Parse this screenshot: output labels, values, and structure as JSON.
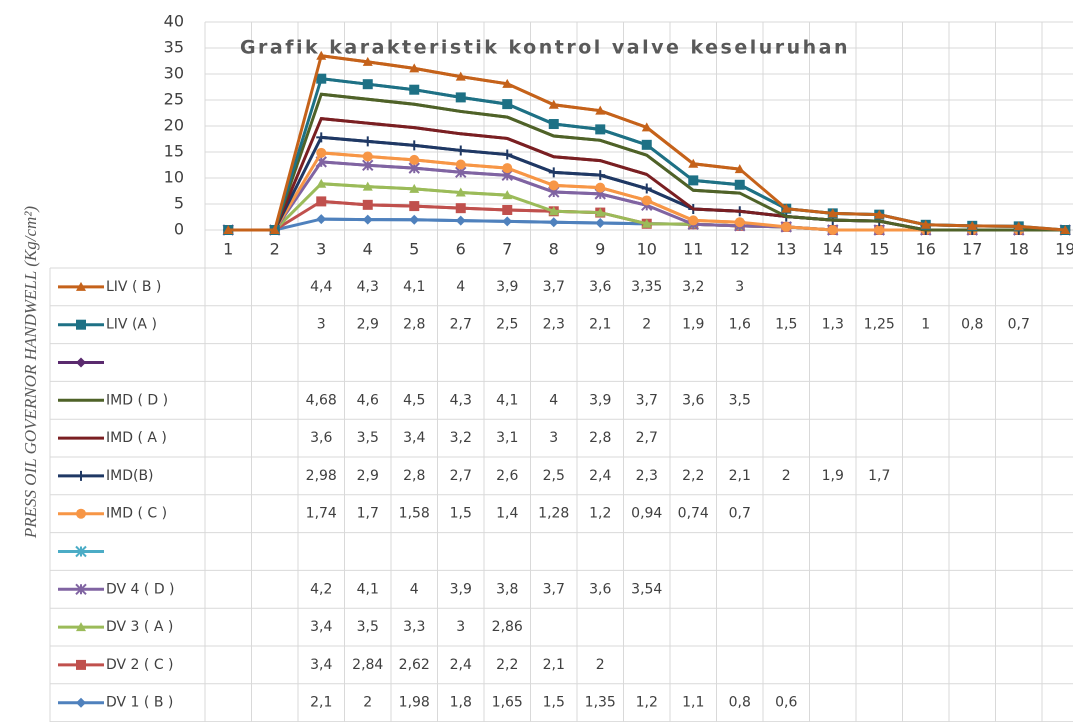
{
  "chart_data": {
    "type": "line",
    "stacked": true,
    "blanks_as_zero": true,
    "grid": true,
    "data_table": true,
    "title": "Grafik karakteristik kontrol valve keseluruhan",
    "y_label": "PRESS OIL GOVERNOR HANDWELL (Kg/cm²)",
    "ylim": [
      0,
      40
    ],
    "yticks": [
      0,
      5,
      10,
      15,
      20,
      25,
      30,
      35,
      40
    ],
    "categories": [
      1,
      2,
      3,
      4,
      5,
      6,
      7,
      8,
      9,
      10,
      11,
      12,
      13,
      14,
      15,
      16,
      17,
      18,
      19
    ],
    "series": [
      {
        "name": "LIV ( B )",
        "color": "#c5621a",
        "marker": "triangle",
        "values": [
          null,
          null,
          4.4,
          4.3,
          4.1,
          4,
          3.9,
          3.7,
          3.6,
          3.35,
          3.2,
          3,
          null,
          null,
          null,
          null,
          null,
          null,
          null
        ],
        "value_labels": [
          null,
          null,
          "4,4",
          "4,3",
          "4,1",
          "4",
          "3,9",
          "3,7",
          "3,6",
          "3,35",
          "3,2",
          "3",
          null,
          null,
          null,
          null,
          null,
          null,
          null
        ]
      },
      {
        "name": "LIV (A )",
        "color": "#1e7185",
        "marker": "square",
        "values": [
          null,
          null,
          3,
          2.9,
          2.8,
          2.7,
          2.5,
          2.3,
          2.1,
          2,
          1.9,
          1.6,
          1.5,
          1.3,
          1.25,
          1,
          0.8,
          0.7,
          null
        ],
        "value_labels": [
          null,
          null,
          "3",
          "2,9",
          "2,8",
          "2,7",
          "2,5",
          "2,3",
          "2,1",
          "2",
          "1,9",
          "1,6",
          "1,5",
          "1,3",
          "1,25",
          "1",
          "0,8",
          "0,7",
          null
        ]
      },
      {
        "name": null,
        "color": "#5a2a6e",
        "marker": "diamond",
        "values": [
          null,
          null,
          null,
          null,
          null,
          null,
          null,
          null,
          null,
          null,
          null,
          null,
          null,
          null,
          null,
          null,
          null,
          null,
          null
        ]
      },
      {
        "name": "IMD ( D )",
        "color": "#4f6228",
        "marker": "none",
        "values": [
          null,
          null,
          4.68,
          4.6,
          4.5,
          4.3,
          4.1,
          4,
          3.9,
          3.7,
          3.6,
          3.5,
          null,
          null,
          null,
          null,
          null,
          null,
          null
        ],
        "value_labels": [
          null,
          null,
          "4,68",
          "4,6",
          "4,5",
          "4,3",
          "4,1",
          "4",
          "3,9",
          "3,7",
          "3,6",
          "3,5",
          null,
          null,
          null,
          null,
          null,
          null,
          null
        ]
      },
      {
        "name": "IMD ( A )",
        "color": "#7a1f22",
        "marker": "none",
        "values": [
          null,
          null,
          3.6,
          3.5,
          3.4,
          3.2,
          3.1,
          3,
          2.8,
          2.7,
          null,
          null,
          null,
          null,
          null,
          null,
          null,
          null,
          null
        ],
        "value_labels": [
          null,
          null,
          "3,6",
          "3,5",
          "3,4",
          "3,2",
          "3,1",
          "3",
          "2,8",
          "2,7",
          null,
          null,
          null,
          null,
          null,
          null,
          null,
          null,
          null
        ]
      },
      {
        "name": "IMD(B)",
        "color": "#1f3864",
        "marker": "plus",
        "values": [
          null,
          null,
          2.98,
          2.9,
          2.8,
          2.7,
          2.6,
          2.5,
          2.4,
          2.3,
          2.2,
          2.1,
          2,
          1.9,
          1.7,
          null,
          null,
          null,
          null
        ],
        "value_labels": [
          null,
          null,
          "2,98",
          "2,9",
          "2,8",
          "2,7",
          "2,6",
          "2,5",
          "2,4",
          "2,3",
          "2,2",
          "2,1",
          "2",
          "1,9",
          "1,7",
          null,
          null,
          null,
          null
        ]
      },
      {
        "name": "IMD ( C )",
        "color": "#f79646",
        "marker": "circle",
        "values": [
          null,
          null,
          1.74,
          1.7,
          1.58,
          1.5,
          1.4,
          1.28,
          1.2,
          0.94,
          0.74,
          0.7,
          null,
          null,
          null,
          null,
          null,
          null,
          null
        ],
        "value_labels": [
          null,
          null,
          "1,74",
          "1,7",
          "1,58",
          "1,5",
          "1,4",
          "1,28",
          "1,2",
          "0,94",
          "0,74",
          "0,7",
          null,
          null,
          null,
          null,
          null,
          null,
          null
        ]
      },
      {
        "name": null,
        "color": "#4bacc6",
        "marker": "star",
        "values": [
          null,
          null,
          null,
          null,
          null,
          null,
          null,
          null,
          null,
          null,
          null,
          null,
          null,
          null,
          null,
          null,
          null,
          null,
          null
        ]
      },
      {
        "name": "DV 4 ( D )",
        "color": "#8064a2",
        "marker": "star",
        "values": [
          null,
          null,
          4.2,
          4.1,
          4,
          3.9,
          3.8,
          3.7,
          3.6,
          3.54,
          null,
          null,
          null,
          null,
          null,
          null,
          null,
          null,
          null
        ],
        "value_labels": [
          null,
          null,
          "4,2",
          "4,1",
          "4",
          "3,9",
          "3,8",
          "3,7",
          "3,6",
          "3,54",
          null,
          null,
          null,
          null,
          null,
          null,
          null,
          null,
          null
        ]
      },
      {
        "name": "DV 3 ( A )",
        "color": "#9bbb59",
        "marker": "triangle",
        "values": [
          null,
          null,
          3.4,
          3.5,
          3.3,
          3,
          2.86,
          null,
          null,
          null,
          null,
          null,
          null,
          null,
          null,
          null,
          null,
          null,
          null
        ],
        "value_labels": [
          null,
          null,
          "3,4",
          "3,5",
          "3,3",
          "3",
          "2,86",
          null,
          null,
          null,
          null,
          null,
          null,
          null,
          null,
          null,
          null,
          null,
          null
        ]
      },
      {
        "name": "DV 2 ( C )",
        "color": "#c0504d",
        "marker": "square",
        "values": [
          null,
          null,
          3.4,
          2.84,
          2.62,
          2.4,
          2.2,
          2.1,
          2,
          null,
          null,
          null,
          null,
          null,
          null,
          null,
          null,
          null,
          null
        ],
        "value_labels": [
          null,
          null,
          "3,4",
          "2,84",
          "2,62",
          "2,4",
          "2,2",
          "2,1",
          "2",
          null,
          null,
          null,
          null,
          null,
          null,
          null,
          null,
          null,
          null
        ]
      },
      {
        "name": "DV 1 ( B )",
        "color": "#4f81bd",
        "marker": "diamond",
        "values": [
          null,
          null,
          2.1,
          2,
          1.98,
          1.8,
          1.65,
          1.5,
          1.35,
          1.2,
          1.1,
          0.8,
          0.6,
          null,
          null,
          null,
          null,
          null,
          null
        ],
        "value_labels": [
          null,
          null,
          "2,1",
          "2",
          "1,98",
          "1,8",
          "1,65",
          "1,5",
          "1,35",
          "1,2",
          "1,1",
          "0,8",
          "0,6",
          null,
          null,
          null,
          null,
          null,
          null
        ]
      }
    ]
  }
}
